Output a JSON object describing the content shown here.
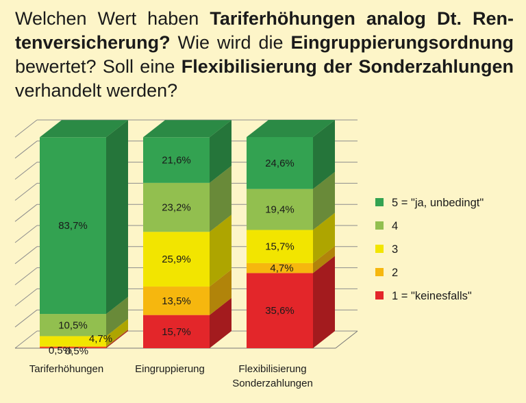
{
  "title_parts": [
    {
      "text": "Welchen Wert haben ",
      "bold": false
    },
    {
      "text": "Tariferhöhungen analog Dt. Ren-tenversicherung?",
      "bold": true
    },
    {
      "text": " Wie wird die ",
      "bold": false
    },
    {
      "text": "Eingruppierungsordnung",
      "bold": true
    },
    {
      "text": " bewertet? Soll eine ",
      "bold": false
    },
    {
      "text": "Flexibilisierung der Sonderzahlungen",
      "bold": true
    },
    {
      "text": " verhandelt werden?",
      "bold": false
    }
  ],
  "chart_data": {
    "type": "bar",
    "stacked": true,
    "three_d": true,
    "title": "Welchen Wert haben Tariferhöhungen analog Dt. Ren-tenversicherung? Wie wird die Eingruppierungsordnung bewertet? Soll eine Flexibilisierung der Sonderzahlungen verhandelt werden?",
    "categories": [
      [
        "Tariferhöhungen"
      ],
      [
        "Eingruppierung"
      ],
      [
        "Flexibilisierung",
        "Sonderzahlungen"
      ]
    ],
    "ylim": [
      0,
      100
    ],
    "grid": true,
    "legend_position": "right",
    "series": [
      {
        "name": "1 = \"keinesfalls\"",
        "color": "#e3262a",
        "values": [
          0.5,
          15.7,
          35.6
        ],
        "labels": [
          "0,5%",
          "15,7%",
          "35,6%"
        ]
      },
      {
        "name": "2",
        "color": "#f6b70e",
        "values": [
          0.5,
          13.5,
          4.7
        ],
        "labels": [
          "0,5%",
          "13,5%",
          "4,7%"
        ]
      },
      {
        "name": "3",
        "color": "#f2e500",
        "values": [
          4.7,
          25.9,
          15.7
        ],
        "labels": [
          "4,7%",
          "25,9%",
          "15,7%"
        ]
      },
      {
        "name": "4",
        "color": "#92bf4f",
        "values": [
          10.5,
          23.2,
          19.4
        ],
        "labels": [
          "10,5%",
          "23,2%",
          "19,4%"
        ]
      },
      {
        "name": "5 = \"ja, unbedingt\"",
        "color": "#33a251",
        "values": [
          83.7,
          21.6,
          24.6
        ],
        "labels": [
          "83,7%",
          "21,6%",
          "24,6%"
        ]
      }
    ]
  }
}
